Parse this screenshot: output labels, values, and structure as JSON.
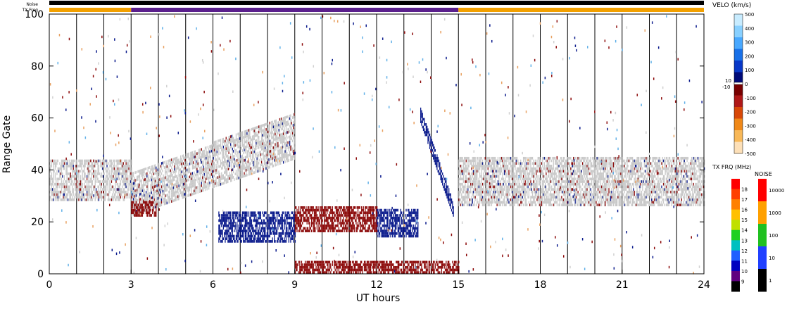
{
  "strips": {
    "noise_label": "Noise",
    "txfreq_label": "TX Freq",
    "txfreq_segments": [
      {
        "start_ut": 0,
        "end_ut": 3,
        "color": "#f2a000"
      },
      {
        "start_ut": 3,
        "end_ut": 15,
        "color": "#5a1f8c"
      },
      {
        "start_ut": 15,
        "end_ut": 24,
        "color": "#f2a000"
      }
    ]
  },
  "chart_data": {
    "type": "heatmap",
    "xlabel": "UT hours",
    "ylabel": "Range Gate",
    "xlim": [
      0,
      24
    ],
    "ylim": [
      0,
      100
    ],
    "xticks": [
      0,
      3,
      6,
      9,
      12,
      15,
      18,
      21,
      24
    ],
    "yticks": [
      0,
      20,
      40,
      60,
      80,
      100
    ],
    "vertical_lines_ut": [
      1,
      2,
      3,
      4,
      5,
      6,
      7,
      8,
      9,
      10,
      11,
      12,
      13,
      14,
      15,
      16,
      17,
      18,
      19,
      20,
      21,
      22,
      23
    ],
    "colors": {
      "ground_scatter": "#c8c8c8",
      "positive": "#0a1a8c",
      "negative": "#8c0a0a"
    },
    "features": [
      {
        "name": "ground-scatter-band-1",
        "ut_start": 0,
        "ut_end": 3,
        "gate_low": 28,
        "gate_high": 44,
        "class": "ground"
      },
      {
        "name": "ground-scatter-rising",
        "ut_start": 3,
        "ut_end": 9,
        "gate_low_start": 22,
        "gate_low_end": 44,
        "gate_high_start": 38,
        "gate_high_end": 62,
        "class": "ground"
      },
      {
        "name": "positive-velocity-band",
        "ut_start": 6.2,
        "ut_end": 9.0,
        "gate_low": 12,
        "gate_high": 24,
        "class": "positive"
      },
      {
        "name": "negative-velocity-block-1",
        "ut_start": 9.0,
        "ut_end": 12.0,
        "gate_low": 16,
        "gate_high": 26,
        "class": "negative"
      },
      {
        "name": "positive-velocity-block-2",
        "ut_start": 12.0,
        "ut_end": 13.5,
        "gate_low": 14,
        "gate_high": 25,
        "class": "positive"
      },
      {
        "name": "negative-block-3-5h",
        "ut_start": 3.0,
        "ut_end": 3.9,
        "gate_low": 22,
        "gate_high": 28,
        "class": "negative"
      },
      {
        "name": "positive-arc-14h",
        "ut_start": 13.6,
        "ut_end": 14.8,
        "gate_low_start": 58,
        "gate_low_end": 22,
        "class": "positive"
      },
      {
        "name": "ground-scatter-band-2",
        "ut_start": 15,
        "ut_end": 24,
        "gate_low": 26,
        "gate_high": 45,
        "class": "ground"
      },
      {
        "name": "negative-ground-band-near-0",
        "ut_start": 9,
        "ut_end": 15,
        "gate_low": 0,
        "gate_high": 5,
        "class": "negative"
      }
    ]
  },
  "velocity_scale": {
    "title": "VELO (km/s)",
    "labels": [
      "500",
      "400",
      "300",
      "200",
      "100",
      "0",
      "-100",
      "-200",
      "-300",
      "-400",
      "-500"
    ],
    "side_labels": [
      "10",
      "-10"
    ],
    "colors": [
      "#c8ecff",
      "#88d0ff",
      "#48a8ff",
      "#1870e8",
      "#0838c8",
      "#000a78",
      "#780000",
      "#b01818",
      "#d84808",
      "#f08818",
      "#f8b858",
      "#fde0b8"
    ]
  },
  "txfreq_scale": {
    "title": "TX FRQ (MHz)",
    "labels": [
      "18",
      "17",
      "16",
      "15",
      "14",
      "13",
      "12",
      "11",
      "10",
      "9"
    ],
    "colors": [
      "#ff0000",
      "#ff4000",
      "#ff8000",
      "#ffc000",
      "#c0e000",
      "#20d020",
      "#00c0c0",
      "#2060ff",
      "#0000c0",
      "#600080",
      "#000000"
    ]
  },
  "noise_scale": {
    "title": "NOISE",
    "labels": [
      "10000",
      "1000",
      "100",
      "10",
      "1"
    ],
    "colors": [
      "#ff0000",
      "#ffa000",
      "#20c020",
      "#2040ff",
      "#000000"
    ]
  }
}
